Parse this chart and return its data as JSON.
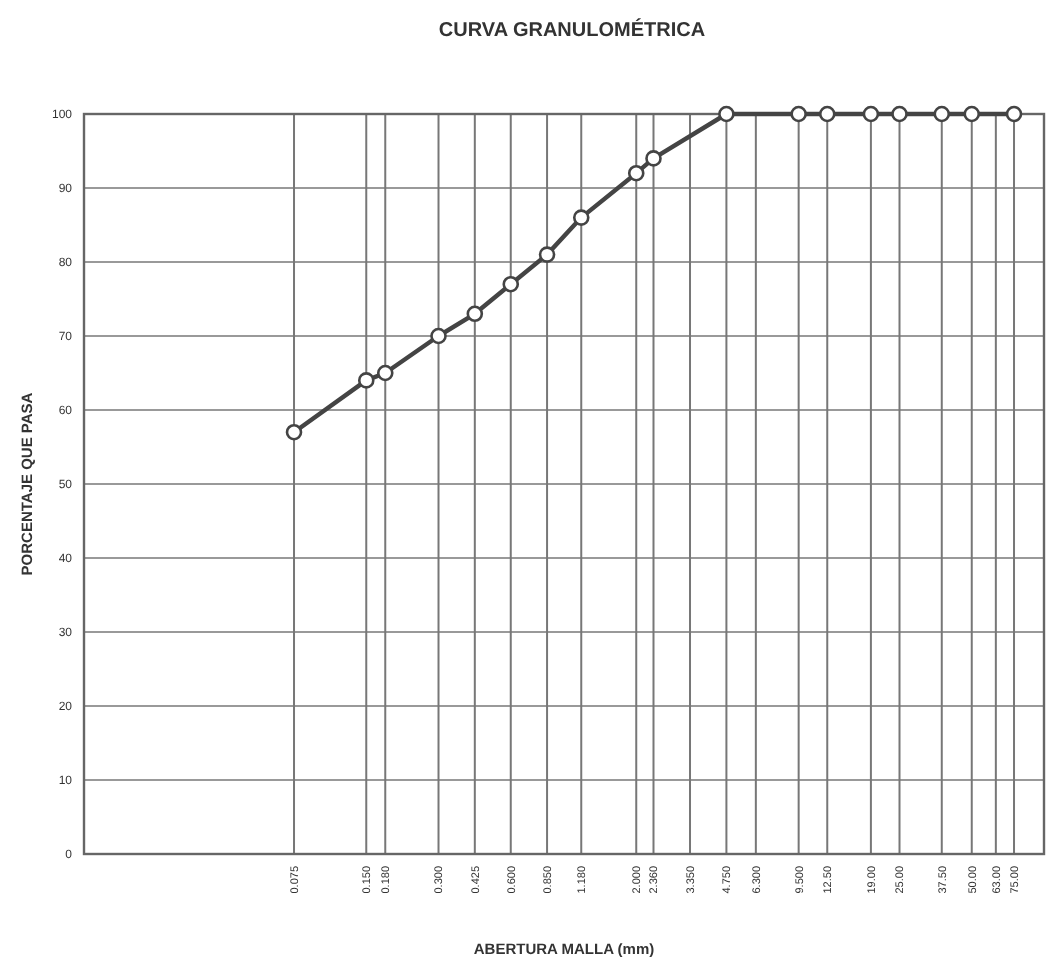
{
  "chart_data": {
    "type": "line",
    "title": "CURVA GRANULOMÉTRICA",
    "xlabel": "ABERTURA MALLA (mm)",
    "ylabel": "PORCENTAJE QUE PASA",
    "log": "x",
    "grid": true,
    "marker": "circle",
    "line_style": "solid",
    "xlim": [
      0.01,
      100
    ],
    "ylim": [
      0,
      100
    ],
    "yticks": [
      0,
      10,
      20,
      30,
      40,
      50,
      60,
      70,
      80,
      90,
      100
    ],
    "xticks": [
      {
        "value": 0.075,
        "label": "0.075"
      },
      {
        "value": 0.15,
        "label": "0.150"
      },
      {
        "value": 0.18,
        "label": "0.180"
      },
      {
        "value": 0.3,
        "label": "0.300"
      },
      {
        "value": 0.425,
        "label": "0.425"
      },
      {
        "value": 0.6,
        "label": "0.600"
      },
      {
        "value": 0.85,
        "label": "0.850"
      },
      {
        "value": 1.18,
        "label": "1.180"
      },
      {
        "value": 2,
        "label": "2.000"
      },
      {
        "value": 2.36,
        "label": "2.360"
      },
      {
        "value": 3.35,
        "label": "3.350"
      },
      {
        "value": 4.75,
        "label": "4.750"
      },
      {
        "value": 6.3,
        "label": "6.300"
      },
      {
        "value": 9.5,
        "label": "9.500"
      },
      {
        "value": 12.5,
        "label": "12.50"
      },
      {
        "value": 19,
        "label": "19.00"
      },
      {
        "value": 25,
        "label": "25.00"
      },
      {
        "value": 37.5,
        "label": "37.50"
      },
      {
        "value": 50,
        "label": "50.00"
      },
      {
        "value": 63,
        "label": "63.00"
      },
      {
        "value": 75,
        "label": "75.00"
      }
    ],
    "series": [
      {
        "color": "#444444",
        "x": [
          0.075,
          0.15,
          0.18,
          0.3,
          0.425,
          0.6,
          0.85,
          1.18,
          2,
          2.36,
          4.75,
          9.5,
          12.5,
          19,
          25,
          37.5,
          50,
          75
        ],
        "values": [
          57,
          64,
          65,
          70,
          73,
          77,
          81,
          86,
          92,
          94,
          100,
          100,
          100,
          100,
          100,
          100,
          100,
          100
        ]
      }
    ]
  }
}
